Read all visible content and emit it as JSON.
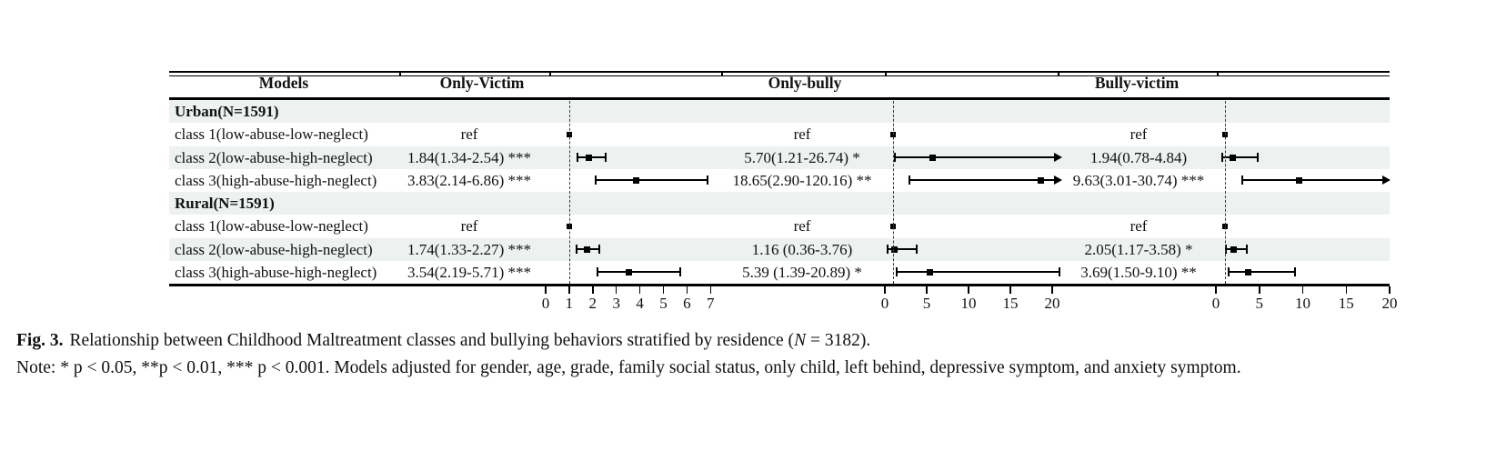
{
  "colors": {
    "stripe": "#edf1ef",
    "ink": "#111111",
    "marker": "#000000",
    "ref_dash": "#3c3c3c"
  },
  "chart_data": {
    "type": "forest",
    "models_header": "Models",
    "panels": [
      {
        "header": "Only-Victim",
        "ticks": [
          "0",
          "1",
          "2",
          "3",
          "4",
          "5",
          "6",
          "7"
        ],
        "axis_range": [
          0,
          7.5
        ],
        "ref_line": 1
      },
      {
        "header": "Only-bully",
        "ticks": [
          "0",
          "5",
          "10",
          "15",
          "20"
        ],
        "axis_range": [
          0,
          21
        ],
        "ref_line": 1
      },
      {
        "header": "Bully-victim",
        "ticks": [
          "0",
          "5",
          "10",
          "15",
          "20"
        ],
        "axis_range": [
          0,
          20
        ],
        "ref_line": 1
      }
    ],
    "rows": [
      {
        "kind": "group",
        "label": "Urban(N=1591)"
      },
      {
        "kind": "data",
        "label": "class 1(low-abuse-low-neglect)",
        "estimates": [
          {
            "text": "ref",
            "ref": true
          },
          {
            "text": "ref",
            "ref": true
          },
          {
            "text": "ref",
            "ref": true
          }
        ]
      },
      {
        "kind": "data",
        "label": "class 2(low-abuse-high-neglect)",
        "estimates": [
          {
            "text": "1.84(1.34-2.54) ***",
            "or": 1.84,
            "lo": 1.34,
            "hi": 2.54
          },
          {
            "text": "5.70(1.21-26.74) *",
            "or": 5.7,
            "lo": 1.21,
            "hi": 26.74
          },
          {
            "text": "1.94(0.78-4.84)",
            "or": 1.94,
            "lo": 0.78,
            "hi": 4.84
          }
        ]
      },
      {
        "kind": "data",
        "label": "class 3(high-abuse-high-neglect)",
        "estimates": [
          {
            "text": "3.83(2.14-6.86) ***",
            "or": 3.83,
            "lo": 2.14,
            "hi": 6.86
          },
          {
            "text": "18.65(2.90-120.16) **",
            "or": 18.65,
            "lo": 2.9,
            "hi": 120.16
          },
          {
            "text": "9.63(3.01-30.74) ***",
            "or": 9.63,
            "lo": 3.01,
            "hi": 30.74
          }
        ]
      },
      {
        "kind": "group",
        "label": "Rural(N=1591)"
      },
      {
        "kind": "data",
        "label": "class 1(low-abuse-low-neglect)",
        "estimates": [
          {
            "text": "ref",
            "ref": true
          },
          {
            "text": "ref",
            "ref": true
          },
          {
            "text": "ref",
            "ref": true
          }
        ]
      },
      {
        "kind": "data",
        "label": "class 2(low-abuse-high-neglect)",
        "estimates": [
          {
            "text": "1.74(1.33-2.27) ***",
            "or": 1.74,
            "lo": 1.33,
            "hi": 2.27
          },
          {
            "text": "1.16 (0.36-3.76)",
            "or": 1.16,
            "lo": 0.36,
            "hi": 3.76
          },
          {
            "text": "2.05(1.17-3.58) *",
            "or": 2.05,
            "lo": 1.17,
            "hi": 3.58
          }
        ]
      },
      {
        "kind": "data",
        "label": "class 3(high-abuse-high-neglect)",
        "estimates": [
          {
            "text": "3.54(2.19-5.71) ***",
            "or": 3.54,
            "lo": 2.19,
            "hi": 5.71
          },
          {
            "text": "5.39 (1.39-20.89) *",
            "or": 5.39,
            "lo": 1.39,
            "hi": 20.89
          },
          {
            "text": "3.69(1.50-9.10) **",
            "or": 3.69,
            "lo": 1.5,
            "hi": 9.1
          }
        ]
      }
    ]
  },
  "caption": {
    "fig_label": "Fig. 3.",
    "text_before_n": "Relationship between Childhood Maltreatment classes and bullying behaviors stratified by residence (",
    "n_symbol": "N",
    "text_after_n": " = 3182).",
    "note": "Note: * p < 0.05, **p < 0.01, *** p < 0.001. Models adjusted for gender, age, grade, family social status, only child, left behind, depressive symptom, and anxiety symptom."
  }
}
